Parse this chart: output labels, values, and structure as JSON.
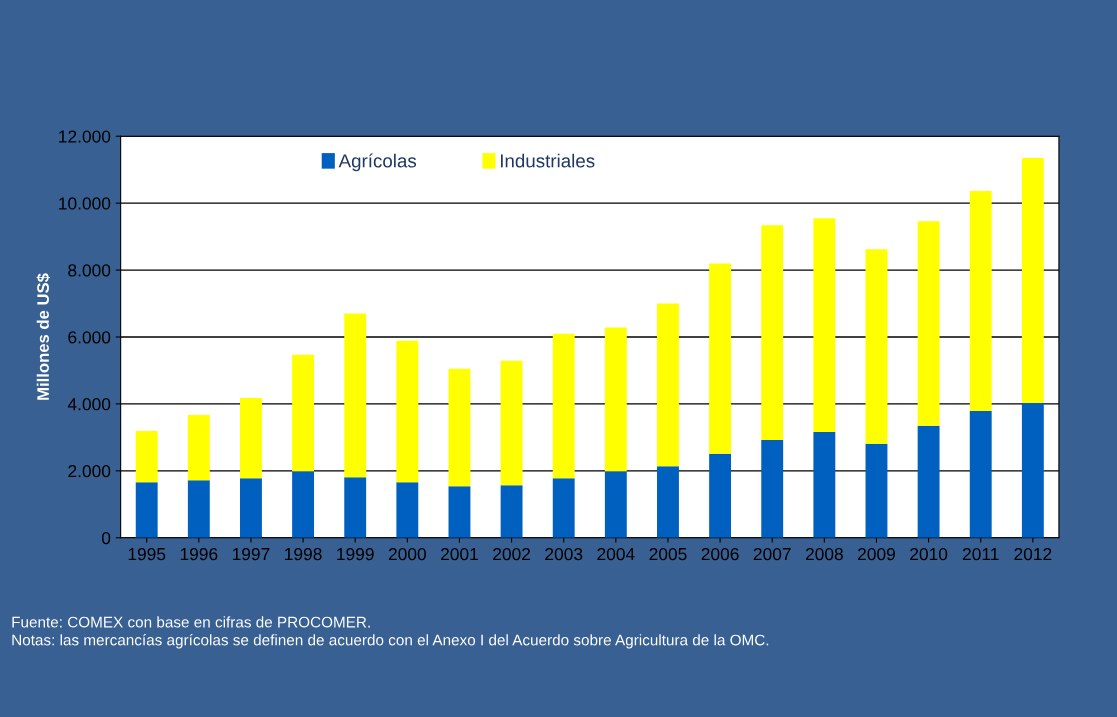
{
  "chart_data": {
    "type": "bar",
    "stacked": true,
    "ylabel": "Millones de US$",
    "categories": [
      "1995",
      "1996",
      "1997",
      "1998",
      "1999",
      "2000",
      "2001",
      "2002",
      "2003",
      "2004",
      "2005",
      "2006",
      "2007",
      "2008",
      "2009",
      "2010",
      "2011",
      "2012"
    ],
    "series": [
      {
        "name": "Agrícolas",
        "color": "#0060c0",
        "values": [
          1660,
          1720,
          1780,
          1990,
          1810,
          1660,
          1540,
          1570,
          1780,
          1990,
          2140,
          2510,
          2920,
          3160,
          2810,
          3350,
          3790,
          4030
        ]
      },
      {
        "name": "Industriales",
        "color": "#ffff00",
        "values": [
          1530,
          1950,
          2400,
          3480,
          4890,
          4230,
          3510,
          3720,
          4320,
          4290,
          4860,
          5690,
          6420,
          6390,
          5810,
          6110,
          6570,
          7320
        ]
      }
    ],
    "ylim": [
      0,
      12000
    ],
    "yticks": [
      0,
      {
        "value": 2000,
        "label": "2.000"
      },
      {
        "value": 4000,
        "label": "4.000"
      },
      {
        "value": 6000,
        "label": "6.000"
      },
      {
        "value": 8000,
        "label": "8.000"
      },
      {
        "value": 10000,
        "label": "10.000"
      },
      {
        "value": 12000,
        "label": "12.000"
      }
    ],
    "grid": "y",
    "legend": "top",
    "annotations": [
      "Fuente: COMEX con base en cifras de PROCOMER.",
      "Notas: las mercancías agrícolas se definen de acuerdo con el Anexo I del Acuerdo sobre Agricultura de la OMC."
    ]
  }
}
